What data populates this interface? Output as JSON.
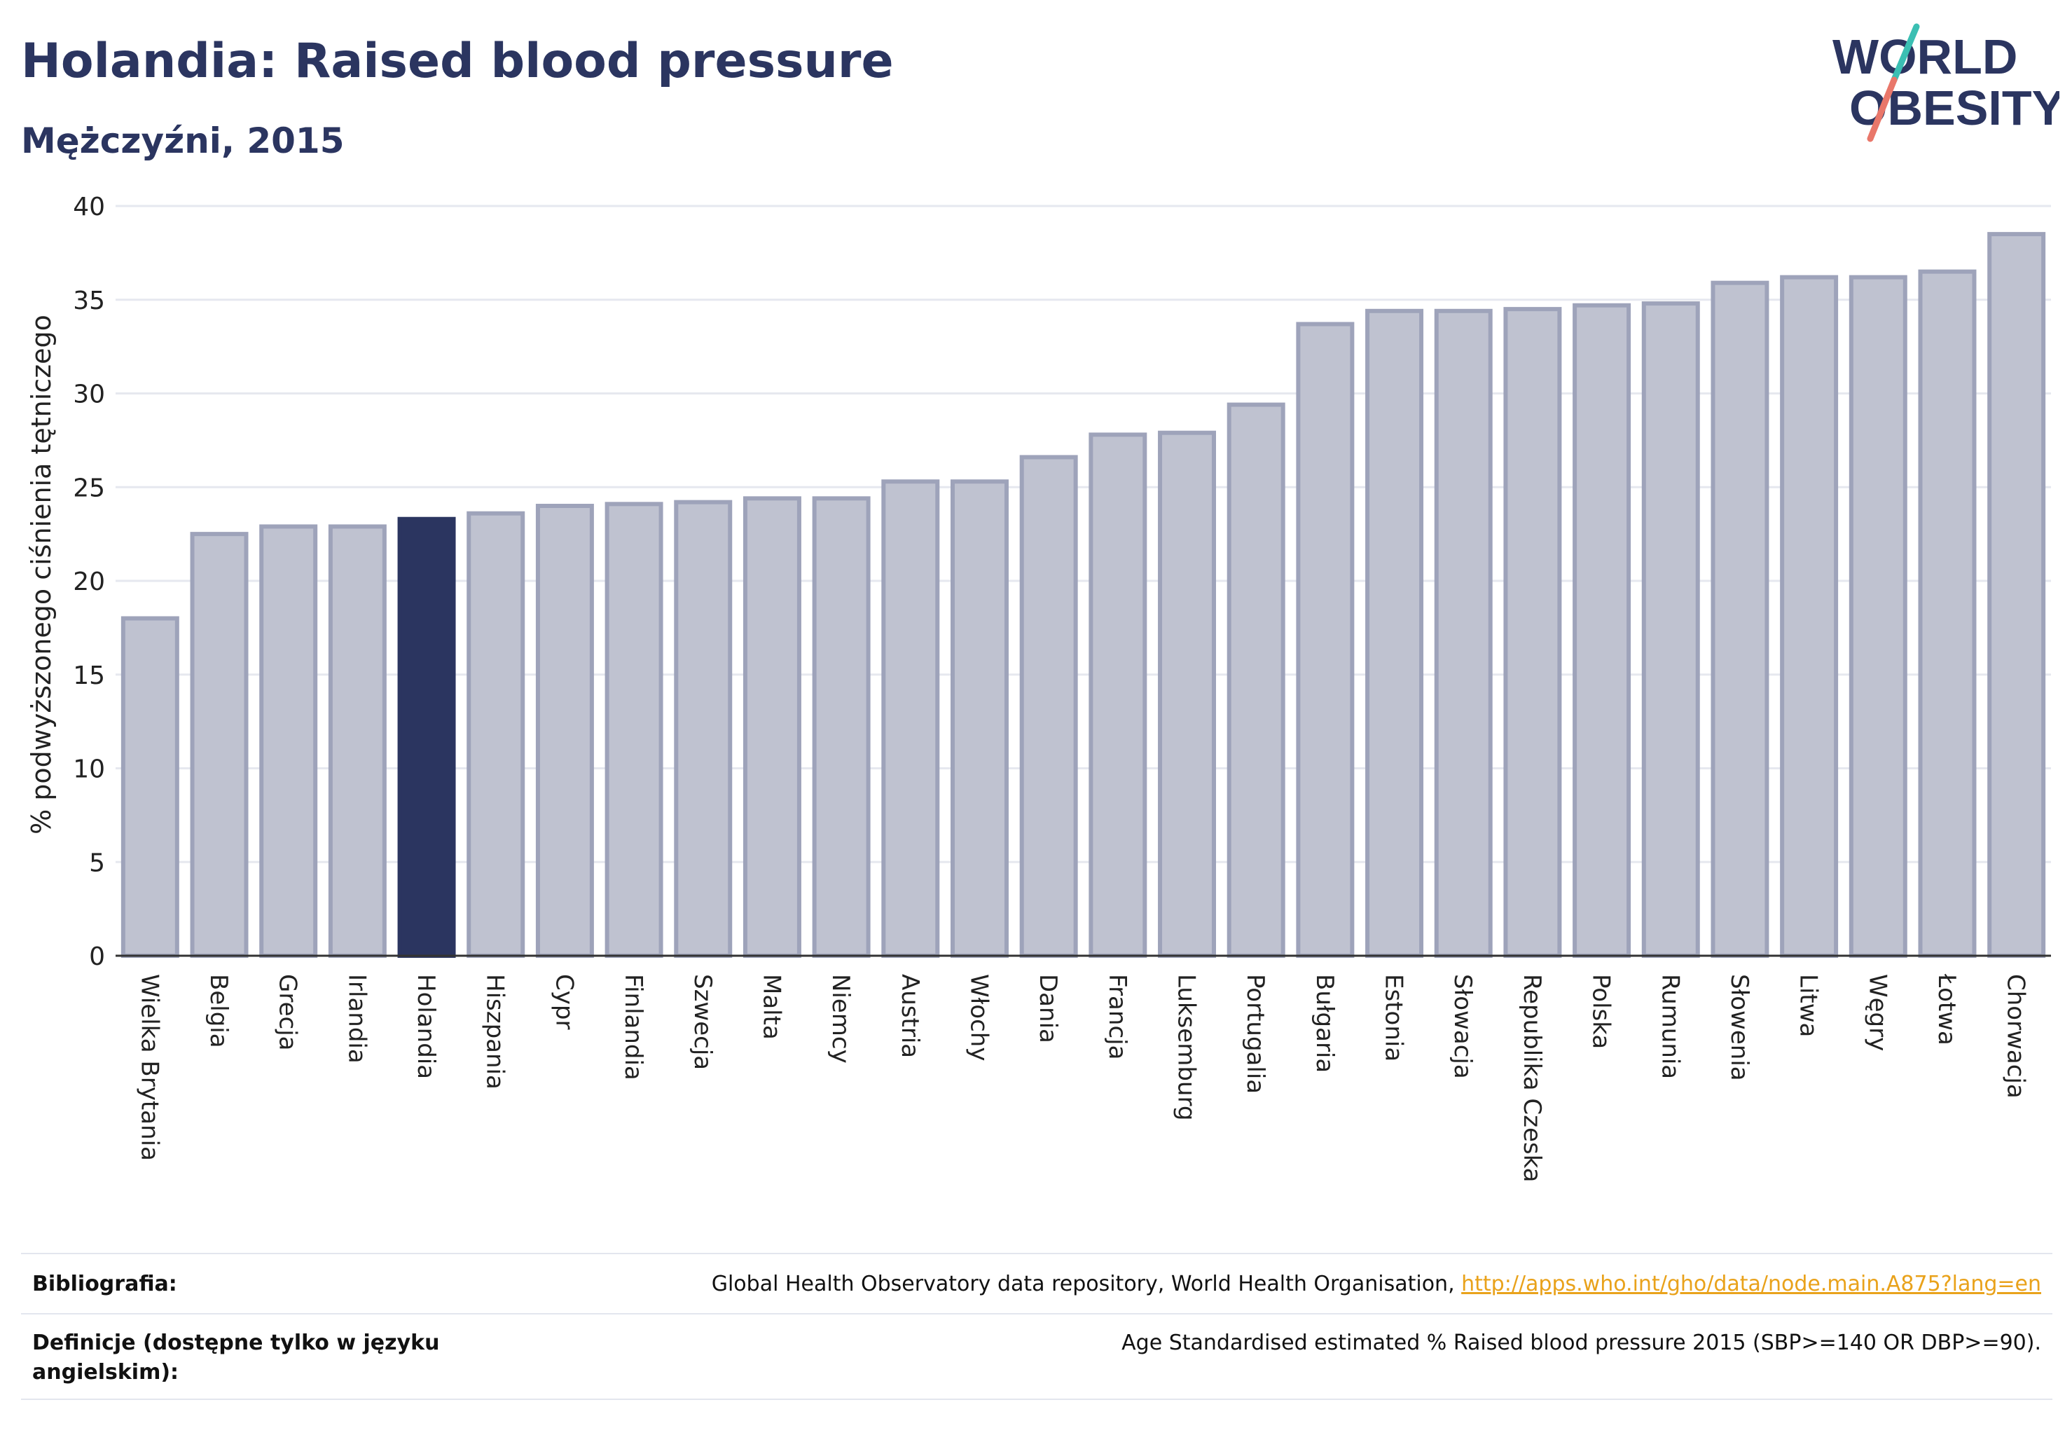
{
  "header": {
    "title": "Holandia: Raised blood pressure",
    "subtitle": "Mężczyźni, 2015"
  },
  "logo": {
    "line1": "WORLD",
    "line2": "OBESITY",
    "colors": {
      "text": "#2b3560",
      "slash_teal": "#3bbfb3",
      "slash_coral": "#e9776a"
    }
  },
  "chart_data": {
    "type": "bar",
    "ylabel": "% podwyższonego ciśnienia tętniczego",
    "xlabel": "",
    "ylim": [
      0,
      40
    ],
    "yticks": [
      0,
      5,
      10,
      15,
      20,
      25,
      30,
      35,
      40
    ],
    "grid": true,
    "highlight": "Holandia",
    "colors": {
      "bar": "#bfc2d0",
      "bar_edge": "#9ea3ba",
      "highlight": "#2b3560",
      "grid": "#e6e8ef",
      "axis": "#333333"
    },
    "categories": [
      "Wielka Brytania",
      "Belgia",
      "Grecja",
      "Irlandia",
      "Holandia",
      "Hiszpania",
      "Cypr",
      "Finlandia",
      "Szwecja",
      "Malta",
      "Niemcy",
      "Austria",
      "Włochy",
      "Dania",
      "Francja",
      "Luksemburg",
      "Portugalia",
      "Bułgaria",
      "Estonia",
      "Słowacja",
      "Republika Czeska",
      "Polska",
      "Rumunia",
      "Słowenia",
      "Litwa",
      "Węgry",
      "Łotwa",
      "Chorwacja"
    ],
    "values": [
      18.0,
      22.5,
      22.9,
      22.9,
      23.3,
      23.6,
      24.0,
      24.1,
      24.2,
      24.4,
      24.4,
      25.3,
      25.3,
      26.6,
      27.8,
      27.9,
      29.4,
      33.7,
      34.4,
      34.4,
      34.5,
      34.7,
      34.8,
      35.9,
      36.2,
      36.2,
      36.5,
      38.5
    ]
  },
  "footer": {
    "bibliography_label": "Bibliografia:",
    "bibliography_text": "Global Health Observatory data repository, World Health Organisation, ",
    "bibliography_link": "http://apps.who.int/gho/data/node.main.A875?lang=en",
    "definition_label": "Definicje (dostępne tylko w języku angielskim):",
    "definition_text": "Age Standardised estimated % Raised blood pressure 2015 (SBP>=140 OR DBP>=90)."
  }
}
